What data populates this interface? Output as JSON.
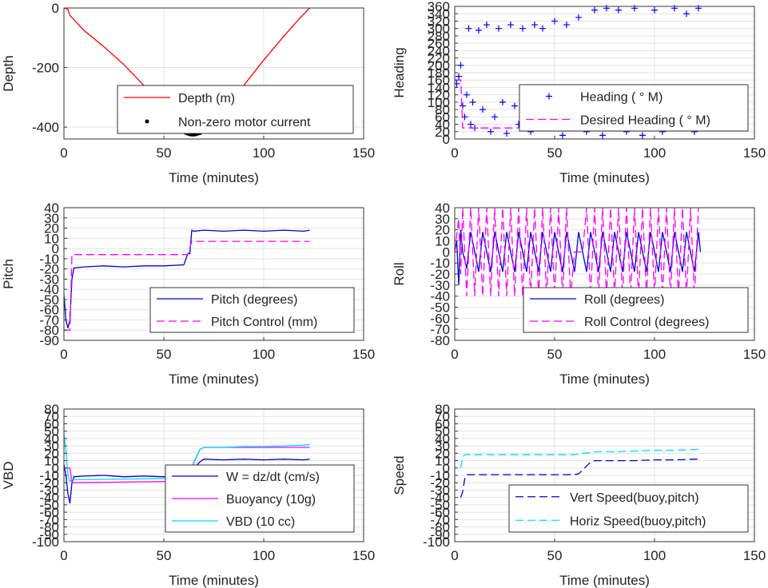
{
  "chart_data": [
    {
      "type": "line",
      "xlabel": "Time (minutes)",
      "ylabel": "Depth",
      "xlim": [
        0,
        150
      ],
      "ylim": [
        -440,
        0
      ],
      "xticks": [
        0,
        50,
        100,
        150
      ],
      "yticks": [
        -400,
        -200,
        0
      ],
      "grid": true,
      "legend_position": "bottom-right",
      "series": [
        {
          "name": "Depth (m)",
          "color": "#ff0000",
          "style": "solid",
          "x": [
            0,
            1,
            2,
            3,
            10,
            20,
            30,
            40,
            50,
            60,
            63,
            66,
            70,
            80,
            90,
            100,
            110,
            118,
            123
          ],
          "y": [
            0,
            -2,
            -5,
            -25,
            -75,
            -130,
            -190,
            -260,
            -320,
            -400,
            -420,
            -418,
            -400,
            -330,
            -260,
            -175,
            -95,
            -35,
            0
          ]
        },
        {
          "name": "Non-zero motor current",
          "color": "#000000",
          "style": "markers",
          "x": [
            60,
            61,
            62,
            63,
            64,
            65,
            66,
            67,
            68,
            69,
            70
          ],
          "y": [
            -414,
            -417,
            -420,
            -422,
            -423,
            -423,
            -422,
            -420,
            -418,
            -414,
            -409
          ]
        }
      ]
    },
    {
      "type": "scatter",
      "xlabel": "Time (minutes)",
      "ylabel": "Heading",
      "xlim": [
        0,
        150
      ],
      "ylim": [
        0,
        360
      ],
      "xticks": [
        0,
        50,
        100,
        150
      ],
      "yticks": [
        0,
        20,
        40,
        60,
        80,
        100,
        120,
        140,
        160,
        180,
        200,
        220,
        240,
        260,
        280,
        300,
        320,
        340,
        360
      ],
      "grid": true,
      "legend_position": "right",
      "series": [
        {
          "name": "Heading ( ° M)",
          "color": "#0000ff",
          "style": "plus",
          "x": [
            0,
            1,
            2,
            3,
            4,
            5,
            6,
            7,
            8,
            9,
            10,
            12,
            14,
            16,
            18,
            20,
            22,
            24,
            26,
            28,
            30,
            32,
            34,
            36,
            38,
            40,
            42,
            44,
            46,
            48,
            50,
            52,
            54,
            56,
            58,
            60,
            62,
            64,
            66,
            68,
            70,
            72,
            74,
            76,
            78,
            80,
            82,
            84,
            86,
            88,
            90,
            92,
            94,
            96,
            98,
            100,
            102,
            104,
            106,
            108,
            110,
            112,
            114,
            116,
            118,
            120,
            122
          ],
          "y": [
            160,
            150,
            170,
            200,
            90,
            60,
            120,
            300,
            40,
            100,
            30,
            295,
            80,
            310,
            20,
            60,
            300,
            100,
            15,
            310,
            90,
            40,
            300,
            120,
            20,
            310,
            70,
            300,
            110,
            30,
            320,
            80,
            10,
            310,
            120,
            40,
            330,
            90,
            20,
            100,
            350,
            60,
            10,
            355,
            110,
            40,
            350,
            80,
            20,
            100,
            355,
            50,
            10,
            120,
            30,
            350,
            80,
            20,
            100,
            40,
            355,
            60,
            30,
            340,
            90,
            20,
            355
          ]
        },
        {
          "name": "Desired Heading ( ° M)",
          "color": "#ff00ff",
          "style": "dashed",
          "x": [
            0,
            3,
            4,
            123
          ],
          "y": [
            160,
            160,
            30,
            30
          ]
        }
      ]
    },
    {
      "type": "line",
      "xlabel": "Time (minutes)",
      "ylabel": "Pitch",
      "xlim": [
        0,
        150
      ],
      "ylim": [
        -90,
        40
      ],
      "xticks": [
        0,
        50,
        100,
        150
      ],
      "yticks": [
        -90,
        -80,
        -70,
        -60,
        -50,
        -40,
        -30,
        -20,
        -10,
        0,
        10,
        20,
        30,
        40
      ],
      "grid": true,
      "legend_position": "bottom-right",
      "series": [
        {
          "name": "Pitch (degrees)",
          "color": "#0000cc",
          "style": "solid",
          "x": [
            0,
            1,
            2,
            3,
            4,
            5,
            10,
            20,
            30,
            40,
            50,
            60,
            62,
            63,
            64,
            65,
            70,
            80,
            90,
            100,
            110,
            120,
            123
          ],
          "y": [
            -45,
            -70,
            -78,
            -70,
            -30,
            -19,
            -18,
            -17,
            -18,
            -17,
            -17,
            -16,
            -5,
            -5,
            18,
            17,
            18,
            17,
            18,
            17,
            18,
            17,
            18
          ]
        },
        {
          "name": "Pitch Control (mm)",
          "color": "#ff00ff",
          "style": "dashed",
          "x": [
            0,
            3,
            4,
            62,
            64,
            123
          ],
          "y": [
            -80,
            -80,
            -6,
            -6,
            7,
            7
          ]
        }
      ]
    },
    {
      "type": "line",
      "xlabel": "Time (minutes)",
      "ylabel": "Roll",
      "xlim": [
        0,
        150
      ],
      "ylim": [
        -80,
        40
      ],
      "xticks": [
        0,
        50,
        100,
        150
      ],
      "yticks": [
        -80,
        -70,
        -60,
        -50,
        -40,
        -30,
        -20,
        -10,
        0,
        10,
        20,
        30,
        40
      ],
      "grid": true,
      "legend_position": "bottom-right",
      "series": [
        {
          "name": "Roll (degrees)",
          "color": "#0000cc",
          "style": "solid",
          "x": [
            0,
            1,
            2,
            3,
            4,
            6,
            8,
            10,
            12,
            14,
            16,
            18,
            20,
            22,
            24,
            26,
            28,
            30,
            32,
            34,
            36,
            38,
            40,
            42,
            44,
            46,
            48,
            50,
            52,
            54,
            56,
            58,
            60,
            62,
            64,
            66,
            68,
            70,
            72,
            74,
            76,
            78,
            80,
            82,
            84,
            86,
            88,
            90,
            92,
            94,
            96,
            98,
            100,
            102,
            104,
            106,
            108,
            110,
            112,
            114,
            116,
            118,
            120,
            122,
            123
          ],
          "y": [
            0,
            10,
            -30,
            20,
            0,
            -15,
            18,
            0,
            -18,
            18,
            0,
            -18,
            18,
            0,
            -18,
            18,
            0,
            -18,
            18,
            0,
            -18,
            18,
            0,
            -18,
            18,
            0,
            -18,
            18,
            0,
            -18,
            18,
            0,
            -18,
            18,
            0,
            -18,
            18,
            0,
            -18,
            18,
            0,
            -18,
            18,
            0,
            -18,
            18,
            0,
            -18,
            18,
            0,
            -18,
            18,
            0,
            -18,
            18,
            0,
            -18,
            18,
            0,
            -18,
            18,
            0,
            -18,
            18,
            0
          ]
        },
        {
          "name": "Roll Control (degrees)",
          "color": "#ff00ff",
          "style": "dashed",
          "x": [
            0,
            2,
            3,
            4,
            6,
            8,
            10,
            12,
            14,
            16,
            18,
            20,
            22,
            24,
            26,
            28,
            30,
            32,
            34,
            36,
            38,
            40,
            42,
            44,
            46,
            48,
            50,
            52,
            54,
            56,
            58,
            60,
            62,
            64,
            66,
            68,
            70,
            72,
            74,
            76,
            78,
            80,
            82,
            84,
            86,
            88,
            90,
            92,
            94,
            96,
            98,
            100,
            102,
            104,
            106,
            108,
            110,
            112,
            114,
            116,
            118,
            120,
            122
          ],
          "y": [
            0,
            30,
            -20,
            40,
            -40,
            40,
            -40,
            40,
            -40,
            40,
            -40,
            40,
            -40,
            40,
            -40,
            40,
            -40,
            40,
            -40,
            40,
            -40,
            40,
            -40,
            40,
            -40,
            40,
            -40,
            40,
            -40,
            40,
            -40,
            0,
            0,
            0,
            40,
            -40,
            40,
            -40,
            40,
            -40,
            40,
            -40,
            40,
            -40,
            40,
            -40,
            40,
            -40,
            40,
            -40,
            40,
            -40,
            40,
            -40,
            40,
            -40,
            40,
            -40,
            40,
            -40,
            40,
            -40,
            40
          ]
        }
      ]
    },
    {
      "type": "line",
      "xlabel": "Time (minutes)",
      "ylabel": "VBD",
      "xlim": [
        0,
        150
      ],
      "ylim": [
        -100,
        80
      ],
      "xticks": [
        0,
        50,
        100,
        150
      ],
      "yticks": [
        -100,
        -90,
        -80,
        -70,
        -60,
        -50,
        -40,
        -30,
        -20,
        -10,
        0,
        10,
        20,
        30,
        40,
        50,
        60,
        70,
        80
      ],
      "grid": true,
      "legend_position": "bottom-right",
      "series": [
        {
          "name": "W = dz/dt (cm/s)",
          "color": "#0000cc",
          "style": "solid",
          "x": [
            0,
            1,
            2,
            3,
            4,
            5,
            10,
            20,
            30,
            40,
            50,
            60,
            62,
            65,
            68,
            70,
            80,
            90,
            100,
            110,
            120,
            123
          ],
          "y": [
            5,
            -10,
            -35,
            -48,
            -20,
            -12,
            -11,
            -10,
            -12,
            -11,
            -12,
            -11,
            -10,
            0,
            8,
            12,
            11,
            12,
            11,
            12,
            11,
            12
          ]
        },
        {
          "name": "Buoyancy (10g)",
          "color": "#ff00ff",
          "style": "solid",
          "x": [
            0,
            3,
            4,
            60,
            62,
            68,
            70,
            123
          ],
          "y": [
            0,
            0,
            -20,
            -18,
            -12,
            25,
            28,
            28
          ]
        },
        {
          "name": "VBD (10 cc)",
          "color": "#00d8ff",
          "style": "solid",
          "x": [
            0,
            1,
            2,
            3,
            4,
            60,
            62,
            68,
            70,
            80,
            90,
            100,
            110,
            120,
            123
          ],
          "y": [
            45,
            25,
            -10,
            -18,
            -16,
            -14,
            -10,
            25,
            28,
            28,
            29,
            29,
            30,
            31,
            32
          ]
        }
      ]
    },
    {
      "type": "line",
      "xlabel": "Time (minutes)",
      "ylabel": "Speed",
      "xlim": [
        0,
        150
      ],
      "ylim": [
        -100,
        80
      ],
      "xticks": [
        0,
        50,
        100,
        150
      ],
      "yticks": [
        -100,
        -90,
        -80,
        -70,
        -60,
        -50,
        -40,
        -30,
        -20,
        -10,
        0,
        10,
        20,
        30,
        40,
        50,
        60,
        70,
        80
      ],
      "grid": true,
      "legend_position": "bottom-right",
      "series": [
        {
          "name": "Vert Speed(buoy,pitch)",
          "color": "#0000cc",
          "style": "dashed",
          "x": [
            3,
            4,
            5,
            6,
            60,
            62,
            65,
            68,
            70,
            80,
            90,
            100,
            110,
            120,
            123
          ],
          "y": [
            -40,
            -32,
            -15,
            -9,
            -9,
            -8,
            0,
            8,
            10,
            10,
            10,
            11,
            11,
            12,
            12
          ]
        },
        {
          "name": "Horiz Speed(buoy,pitch)",
          "color": "#00d8ff",
          "style": "dashed",
          "x": [
            3,
            4,
            5,
            6,
            60,
            62,
            65,
            68,
            70,
            80,
            90,
            100,
            110,
            120,
            123
          ],
          "y": [
            0,
            15,
            18,
            18,
            18,
            19,
            20,
            21,
            22,
            22,
            23,
            24,
            24,
            25,
            26
          ]
        }
      ]
    }
  ]
}
